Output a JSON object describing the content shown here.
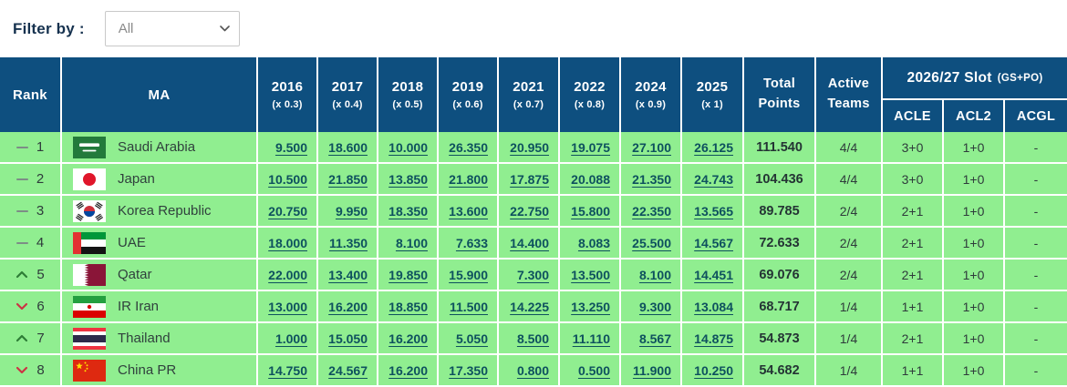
{
  "filter": {
    "label": "Filter by :",
    "selected": "All"
  },
  "colors": {
    "header_bg": "#0e4f7f",
    "row_bg": "#90ee90",
    "link": "#0e515e",
    "trend_up": "#2e7d36",
    "trend_down": "#cc3344",
    "trend_same": "#7d8d86"
  },
  "table": {
    "headers": {
      "rank": "Rank",
      "ma": "MA",
      "years": [
        {
          "year": "2016",
          "mult": "(x 0.3)"
        },
        {
          "year": "2017",
          "mult": "(x 0.4)"
        },
        {
          "year": "2018",
          "mult": "(x 0.5)"
        },
        {
          "year": "2019",
          "mult": "(x 0.6)"
        },
        {
          "year": "2021",
          "mult": "(x 0.7)"
        },
        {
          "year": "2022",
          "mult": "(x 0.8)"
        },
        {
          "year": "2024",
          "mult": "(x 0.9)"
        },
        {
          "year": "2025",
          "mult": "(x 1)"
        }
      ],
      "total_line1": "Total",
      "total_line2": "Points",
      "active_line1": "Active",
      "active_line2": "Teams",
      "slot_title": "2026/27 Slot",
      "slot_suffix": "(GS+PO)",
      "slot_cols": [
        "ACLE",
        "ACL2",
        "ACGL"
      ]
    },
    "rows": [
      {
        "trend": "same",
        "rank": "1",
        "flag": "saudi-arabia",
        "country": "Saudi Arabia",
        "values": [
          "9.500",
          "18.600",
          "10.000",
          "26.350",
          "20.950",
          "19.075",
          "27.100",
          "26.125"
        ],
        "total": "111.540",
        "active": "4/4",
        "acle": "3+0",
        "acl2": "1+0",
        "acgl": "-"
      },
      {
        "trend": "same",
        "rank": "2",
        "flag": "japan",
        "country": "Japan",
        "values": [
          "10.500",
          "21.850",
          "13.850",
          "21.800",
          "17.875",
          "20.088",
          "21.350",
          "24.743"
        ],
        "total": "104.436",
        "active": "4/4",
        "acle": "3+0",
        "acl2": "1+0",
        "acgl": "-"
      },
      {
        "trend": "same",
        "rank": "3",
        "flag": "korea-republic",
        "country": "Korea Republic",
        "values": [
          "20.750",
          "9.950",
          "18.350",
          "13.600",
          "22.750",
          "15.800",
          "22.350",
          "13.565"
        ],
        "total": "89.785",
        "active": "2/4",
        "acle": "2+1",
        "acl2": "1+0",
        "acgl": "-"
      },
      {
        "trend": "same",
        "rank": "4",
        "flag": "uae",
        "country": "UAE",
        "values": [
          "18.000",
          "11.350",
          "8.100",
          "7.633",
          "14.400",
          "8.083",
          "25.500",
          "14.567"
        ],
        "total": "72.633",
        "active": "2/4",
        "acle": "2+1",
        "acl2": "1+0",
        "acgl": "-"
      },
      {
        "trend": "up",
        "rank": "5",
        "flag": "qatar",
        "country": "Qatar",
        "values": [
          "22.000",
          "13.400",
          "19.850",
          "15.900",
          "7.300",
          "13.500",
          "8.100",
          "14.451"
        ],
        "total": "69.076",
        "active": "2/4",
        "acle": "2+1",
        "acl2": "1+0",
        "acgl": "-"
      },
      {
        "trend": "down",
        "rank": "6",
        "flag": "ir-iran",
        "country": "IR Iran",
        "values": [
          "13.000",
          "16.200",
          "18.850",
          "11.500",
          "14.225",
          "13.250",
          "9.300",
          "13.084"
        ],
        "total": "68.717",
        "active": "1/4",
        "acle": "1+1",
        "acl2": "1+0",
        "acgl": "-"
      },
      {
        "trend": "up",
        "rank": "7",
        "flag": "thailand",
        "country": "Thailand",
        "values": [
          "1.000",
          "15.050",
          "16.200",
          "5.050",
          "8.500",
          "11.110",
          "8.567",
          "14.875"
        ],
        "total": "54.873",
        "active": "1/4",
        "acle": "2+1",
        "acl2": "1+0",
        "acgl": "-"
      },
      {
        "trend": "down",
        "rank": "8",
        "flag": "china-pr",
        "country": "China PR",
        "values": [
          "14.750",
          "24.567",
          "16.200",
          "17.350",
          "0.800",
          "0.500",
          "11.900",
          "10.250"
        ],
        "total": "54.682",
        "active": "1/4",
        "acle": "1+1",
        "acl2": "1+0",
        "acgl": "-"
      }
    ]
  }
}
